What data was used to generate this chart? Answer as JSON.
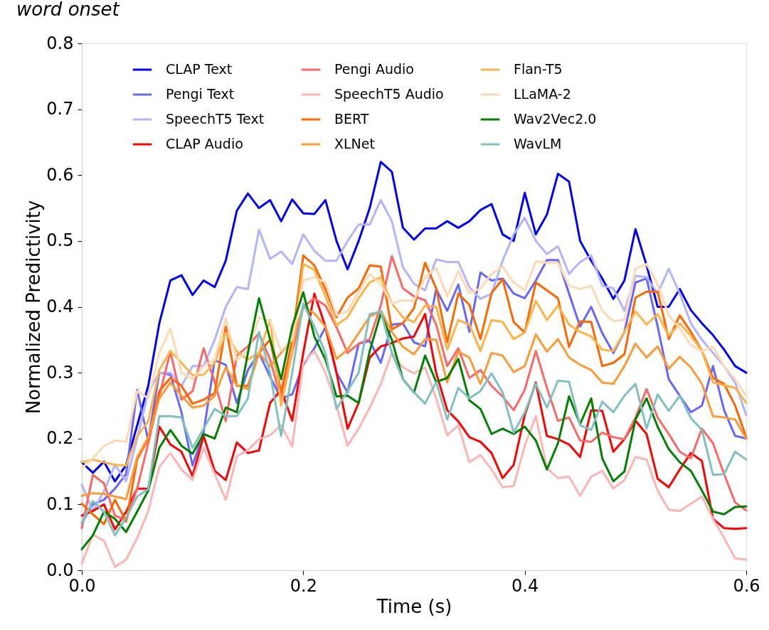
{
  "chart_data": {
    "type": "line",
    "title": "word onset",
    "xlabel": "Time (s)",
    "ylabel": "Normalized Predictivity",
    "x": [
      0,
      0.01,
      0.02,
      0.03,
      0.04,
      0.05,
      0.06,
      0.07,
      0.08,
      0.09,
      0.1,
      0.11,
      0.12,
      0.13,
      0.14,
      0.15,
      0.16,
      0.17,
      0.18,
      0.19,
      0.2,
      0.21,
      0.22,
      0.23,
      0.24,
      0.25,
      0.26,
      0.27,
      0.28,
      0.29,
      0.3,
      0.31,
      0.32,
      0.33,
      0.34,
      0.35,
      0.36,
      0.37,
      0.38,
      0.39,
      0.4,
      0.41,
      0.42,
      0.43,
      0.44,
      0.45,
      0.46,
      0.47,
      0.48,
      0.49,
      0.5,
      0.51,
      0.52,
      0.53,
      0.54,
      0.55,
      0.56,
      0.57,
      0.58,
      0.59,
      0.6
    ],
    "xlim": [
      0,
      0.6
    ],
    "ylim": [
      0,
      0.8
    ],
    "xticks": [
      {
        "value": 0,
        "label": "0.0"
      },
      0.2,
      0.4,
      0.6
    ],
    "yticks": [
      {
        "value": 0,
        "label": "0.0"
      },
      0.1,
      0.2,
      0.3,
      0.4,
      0.5,
      0.6,
      0.7,
      0.8
    ],
    "grid": false,
    "legend": "top",
    "line_style": "solid",
    "marker": "none",
    "series": [
      {
        "name": "CLAP Text",
        "color": "#0000ff",
        "values": [
          0.164,
          0.148,
          0.165,
          0.135,
          0.16,
          0.22,
          0.28,
          0.375,
          0.44,
          0.448,
          0.418,
          0.44,
          0.43,
          0.47,
          0.546,
          0.572,
          0.55,
          0.562,
          0.53,
          0.563,
          0.542,
          0.541,
          0.562,
          0.5,
          0.457,
          0.5,
          0.55,
          0.62,
          0.605,
          0.52,
          0.502,
          0.519,
          0.519,
          0.53,
          0.52,
          0.53,
          0.547,
          0.556,
          0.51,
          0.5,
          0.573,
          0.51,
          0.54,
          0.602,
          0.59,
          0.5,
          0.47,
          0.443,
          0.412,
          0.44,
          0.518,
          0.463,
          0.4,
          0.4,
          0.427,
          0.395,
          0.375,
          0.357,
          0.335,
          0.31,
          0.3
        ]
      },
      {
        "name": "Pengi Text",
        "color": "#6666ff",
        "values": [
          0.072,
          0.1,
          0.107,
          0.124,
          0.146,
          0.274,
          0.197,
          0.3,
          0.297,
          0.24,
          0.159,
          0.21,
          0.319,
          0.312,
          0.254,
          0.304,
          0.33,
          0.294,
          0.261,
          0.267,
          0.312,
          0.337,
          0.369,
          0.3,
          0.27,
          0.344,
          0.348,
          0.315,
          0.373,
          0.375,
          0.346,
          0.34,
          0.427,
          0.394,
          0.434,
          0.362,
          0.452,
          0.44,
          0.443,
          0.42,
          0.413,
          0.44,
          0.471,
          0.471,
          0.42,
          0.37,
          0.4,
          0.36,
          0.33,
          0.362,
          0.437,
          0.443,
          0.37,
          0.29,
          0.265,
          0.24,
          0.25,
          0.31,
          0.243,
          0.204,
          0.2
        ]
      },
      {
        "name": "SpeechT5 Text",
        "color": "#b3b3ff",
        "values": [
          0.13,
          0.09,
          0.12,
          0.16,
          0.135,
          0.2,
          0.27,
          0.3,
          0.3,
          0.28,
          0.31,
          0.31,
          0.35,
          0.4,
          0.43,
          0.427,
          0.517,
          0.473,
          0.484,
          0.465,
          0.51,
          0.485,
          0.47,
          0.47,
          0.5,
          0.525,
          0.525,
          0.562,
          0.53,
          0.46,
          0.435,
          0.425,
          0.472,
          0.468,
          0.468,
          0.43,
          0.412,
          0.42,
          0.47,
          0.51,
          0.535,
          0.5,
          0.48,
          0.492,
          0.45,
          0.468,
          0.478,
          0.432,
          0.428,
          0.394,
          0.447,
          0.445,
          0.42,
          0.458,
          0.42,
          0.375,
          0.35,
          0.33,
          0.31,
          0.285,
          0.235
        ]
      },
      {
        "name": "CLAP Audio",
        "color": "#ff0000",
        "values": [
          0.083,
          0.09,
          0.1,
          0.062,
          0.089,
          0.124,
          0.124,
          0.218,
          0.191,
          0.18,
          0.143,
          0.204,
          0.151,
          0.137,
          0.194,
          0.178,
          0.182,
          0.254,
          0.274,
          0.227,
          0.33,
          0.42,
          0.37,
          0.3,
          0.215,
          0.254,
          0.323,
          0.34,
          0.345,
          0.352,
          0.355,
          0.389,
          0.3,
          0.243,
          0.226,
          0.202,
          0.195,
          0.178,
          0.14,
          0.16,
          0.236,
          0.285,
          0.204,
          0.199,
          0.191,
          0.172,
          0.243,
          0.242,
          0.18,
          0.199,
          0.227,
          0.207,
          0.139,
          0.126,
          0.153,
          0.178,
          0.166,
          0.078,
          0.064,
          0.063,
          0.064
        ]
      },
      {
        "name": "Pengi Audio",
        "color": "#ff6666",
        "values": [
          0.064,
          0.145,
          0.132,
          0.083,
          0.076,
          0.124,
          0.193,
          0.265,
          0.332,
          0.259,
          0.272,
          0.337,
          0.286,
          0.226,
          0.326,
          0.34,
          0.36,
          0.32,
          0.26,
          0.33,
          0.4,
          0.413,
          0.402,
          0.369,
          0.33,
          0.344,
          0.351,
          0.402,
          0.477,
          0.428,
          0.416,
          0.41,
          0.373,
          0.31,
          0.337,
          0.292,
          0.304,
          0.28,
          0.264,
          0.243,
          0.274,
          0.333,
          0.277,
          0.227,
          0.232,
          0.197,
          0.195,
          0.209,
          0.202,
          0.199,
          0.232,
          0.275,
          0.232,
          0.207,
          0.18,
          0.17,
          0.215,
          0.193,
          0.146,
          0.103,
          0.091
        ]
      },
      {
        "name": "SpeechT5 Audio",
        "color": "#ffb3b3",
        "values": [
          0.01,
          0.054,
          0.045,
          0.005,
          0.016,
          0.049,
          0.09,
          0.157,
          0.178,
          0.153,
          0.137,
          0.186,
          0.146,
          0.107,
          0.173,
          0.182,
          0.199,
          0.205,
          0.22,
          0.188,
          0.315,
          0.333,
          0.3,
          0.25,
          0.189,
          0.215,
          0.247,
          0.283,
          0.33,
          0.308,
          0.299,
          0.308,
          0.261,
          0.205,
          0.22,
          0.164,
          0.175,
          0.153,
          0.126,
          0.128,
          0.189,
          0.234,
          0.155,
          0.14,
          0.142,
          0.113,
          0.142,
          0.151,
          0.124,
          0.137,
          0.172,
          0.168,
          0.121,
          0.092,
          0.09,
          0.101,
          0.112,
          0.078,
          0.049,
          0.018,
          0.016
        ]
      },
      {
        "name": "BERT",
        "color": "#ff6600",
        "values": [
          0.101,
          0.085,
          0.07,
          0.107,
          0.074,
          0.168,
          0.2,
          0.272,
          0.292,
          0.28,
          0.253,
          0.259,
          0.269,
          0.37,
          0.28,
          0.28,
          0.33,
          0.35,
          0.27,
          0.35,
          0.478,
          0.463,
          0.427,
          0.384,
          0.414,
          0.428,
          0.463,
          0.461,
          0.366,
          0.375,
          0.398,
          0.467,
          0.428,
          0.346,
          0.42,
          0.403,
          0.351,
          0.421,
          0.442,
          0.377,
          0.361,
          0.437,
          0.425,
          0.413,
          0.339,
          0.378,
          0.377,
          0.31,
          0.315,
          0.328,
          0.414,
          0.423,
          0.423,
          0.351,
          0.387,
          0.362,
          0.333,
          0.292,
          0.283,
          0.25,
          0.202
        ]
      },
      {
        "name": "XLNet",
        "color": "#ff9933",
        "values": [
          0.113,
          0.117,
          0.116,
          0.112,
          0.108,
          0.172,
          0.202,
          0.261,
          0.285,
          0.265,
          0.247,
          0.25,
          0.265,
          0.308,
          0.281,
          0.275,
          0.33,
          0.31,
          0.33,
          0.35,
          0.4,
          0.39,
          0.37,
          0.321,
          0.335,
          0.36,
          0.385,
          0.394,
          0.362,
          0.339,
          0.328,
          0.351,
          0.35,
          0.285,
          0.332,
          0.323,
          0.283,
          0.33,
          0.326,
          0.301,
          0.31,
          0.358,
          0.332,
          0.351,
          0.323,
          0.312,
          0.304,
          0.285,
          0.283,
          0.31,
          0.344,
          0.323,
          0.34,
          0.306,
          0.324,
          0.308,
          0.283,
          0.234,
          0.232,
          0.229,
          0.2
        ]
      },
      {
        "name": "Flan-T5",
        "color": "#ffb347",
        "values": [
          0.164,
          0.168,
          0.164,
          0.16,
          0.159,
          0.204,
          0.226,
          0.304,
          0.333,
          0.315,
          0.296,
          0.297,
          0.315,
          0.361,
          0.332,
          0.32,
          0.33,
          0.38,
          0.25,
          0.33,
          0.465,
          0.456,
          0.416,
          0.372,
          0.384,
          0.413,
          0.437,
          0.445,
          0.405,
          0.384,
          0.377,
          0.402,
          0.4,
          0.335,
          0.38,
          0.373,
          0.333,
          0.38,
          0.377,
          0.351,
          0.361,
          0.409,
          0.38,
          0.402,
          0.373,
          0.362,
          0.355,
          0.335,
          0.333,
          0.362,
          0.393,
          0.373,
          0.389,
          0.356,
          0.375,
          0.356,
          0.333,
          0.285,
          0.281,
          0.277,
          0.254
        ]
      },
      {
        "name": "LLaMA-2",
        "color": "#ffd9b3",
        "values": [
          0.155,
          0.17,
          0.189,
          0.197,
          0.195,
          0.272,
          0.261,
          0.33,
          0.367,
          0.3,
          0.29,
          0.31,
          0.32,
          0.382,
          0.319,
          0.333,
          0.384,
          0.378,
          0.333,
          0.351,
          0.44,
          0.445,
          0.437,
          0.387,
          0.393,
          0.423,
          0.45,
          0.434,
          0.405,
          0.41,
          0.409,
          0.445,
          0.459,
          0.416,
          0.454,
          0.421,
          0.428,
          0.45,
          0.461,
          0.437,
          0.425,
          0.469,
          0.467,
          0.467,
          0.432,
          0.427,
          0.432,
          0.394,
          0.378,
          0.38,
          0.458,
          0.465,
          0.434,
          0.387,
          0.367,
          0.342,
          0.332,
          0.34,
          0.31,
          0.29,
          0.265
        ]
      },
      {
        "name": "Wav2Vec2.0",
        "color": "#008000",
        "values": [
          0.032,
          0.053,
          0.089,
          0.078,
          0.058,
          0.089,
          0.121,
          0.186,
          0.213,
          0.189,
          0.177,
          0.207,
          0.2,
          0.247,
          0.24,
          0.33,
          0.413,
          0.351,
          0.29,
          0.37,
          0.422,
          0.355,
          0.32,
          0.264,
          0.265,
          0.254,
          0.333,
          0.39,
          0.35,
          0.29,
          0.27,
          0.326,
          0.286,
          0.292,
          0.321,
          0.258,
          0.245,
          0.207,
          0.215,
          0.207,
          0.218,
          0.197,
          0.153,
          0.193,
          0.264,
          0.222,
          0.261,
          0.17,
          0.135,
          0.15,
          0.229,
          0.261,
          0.218,
          0.184,
          0.164,
          0.151,
          0.121,
          0.089,
          0.085,
          0.096,
          0.097
        ]
      },
      {
        "name": "WavLM",
        "color": "#80c0c0",
        "values": [
          0.072,
          0.105,
          0.089,
          0.053,
          0.08,
          0.112,
          0.123,
          0.234,
          0.234,
          0.232,
          0.186,
          0.215,
          0.245,
          0.234,
          0.234,
          0.261,
          0.362,
          0.3,
          0.204,
          0.3,
          0.405,
          0.37,
          0.33,
          0.245,
          0.272,
          0.3,
          0.389,
          0.393,
          0.33,
          0.29,
          0.27,
          0.253,
          0.286,
          0.229,
          0.277,
          0.261,
          0.272,
          0.299,
          0.27,
          0.209,
          0.24,
          0.283,
          0.247,
          0.288,
          0.286,
          0.22,
          0.213,
          0.256,
          0.24,
          0.265,
          0.283,
          0.215,
          0.267,
          0.242,
          0.265,
          0.231,
          0.213,
          0.145,
          0.146,
          0.18,
          0.168
        ]
      }
    ]
  }
}
